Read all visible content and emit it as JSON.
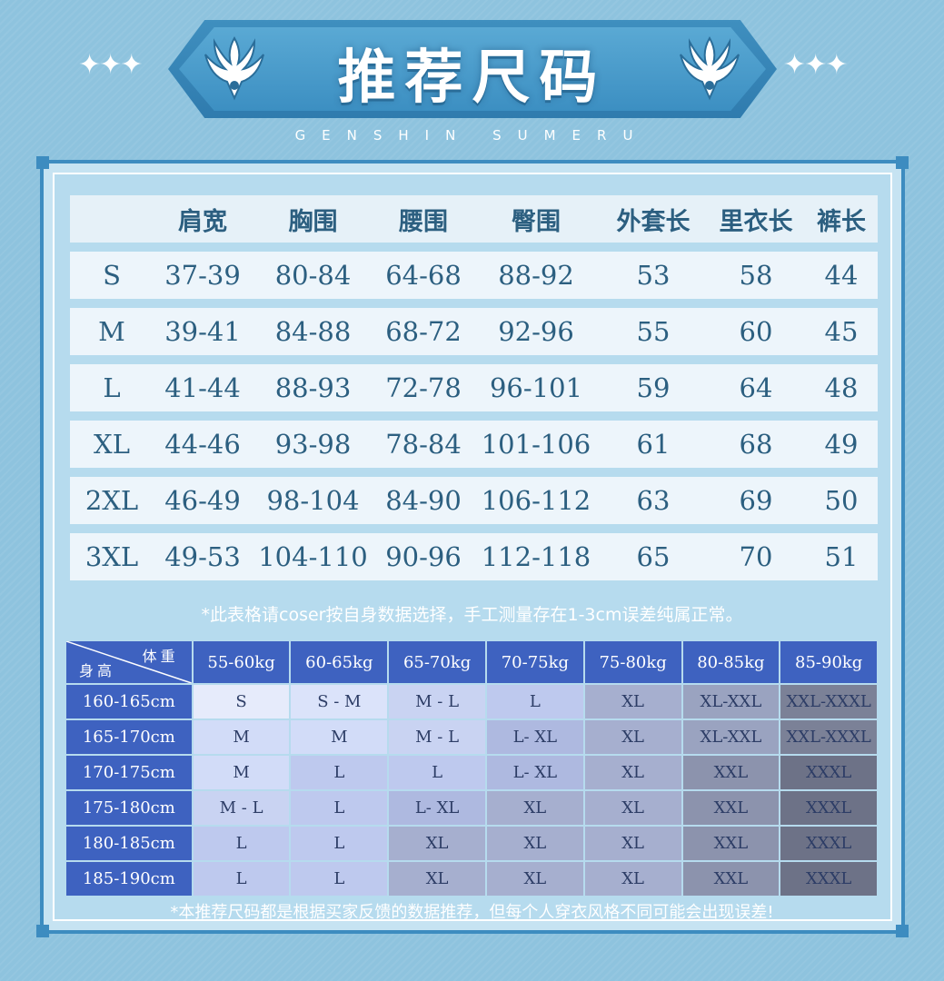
{
  "header": {
    "title": "推荐尺码",
    "subtitle": "GENSHIN SUMERU",
    "stars_left": "✦✦✦",
    "stars_right": "✦✦✦",
    "emblem_icon": "wing-emblem-icon"
  },
  "size_table": {
    "columns": [
      "",
      "肩宽",
      "胸围",
      "腰围",
      "臀围",
      "外套长",
      "里衣长",
      "裤长"
    ],
    "rows": [
      [
        "S",
        "37-39",
        "80-84",
        "64-68",
        "88-92",
        "53",
        "58",
        "44"
      ],
      [
        "M",
        "39-41",
        "84-88",
        "68-72",
        "92-96",
        "55",
        "60",
        "45"
      ],
      [
        "L",
        "41-44",
        "88-93",
        "72-78",
        "96-101",
        "59",
        "64",
        "48"
      ],
      [
        "XL",
        "44-46",
        "93-98",
        "78-84",
        "101-106",
        "61",
        "68",
        "49"
      ],
      [
        "2XL",
        "46-49",
        "98-104",
        "84-90",
        "106-112",
        "63",
        "69",
        "50"
      ],
      [
        "3XL",
        "49-53",
        "104-110",
        "90-96",
        "112-118",
        "65",
        "70",
        "51"
      ]
    ]
  },
  "note_top": "*此表格请coser按自身数据选择，手工测量存在1-3cm误差纯属正常。",
  "grid": {
    "corner_weight": "体重",
    "corner_height": "身高",
    "weights": [
      "55-60kg",
      "60-65kg",
      "65-70kg",
      "70-75kg",
      "75-80kg",
      "80-85kg",
      "85-90kg"
    ],
    "rows": [
      {
        "height": "160-165cm",
        "sizes": [
          "S",
          "S - M",
          "M - L",
          "L",
          "XL",
          "XL-XXL",
          "XXL-XXXL"
        ]
      },
      {
        "height": "165-170cm",
        "sizes": [
          "M",
          "M",
          "M - L",
          "L- XL",
          "XL",
          "XL-XXL",
          "XXL-XXXL"
        ]
      },
      {
        "height": "170-175cm",
        "sizes": [
          "M",
          "L",
          "L",
          "L- XL",
          "XL",
          "XXL",
          "XXXL"
        ]
      },
      {
        "height": "175-180cm",
        "sizes": [
          "M - L",
          "L",
          "L- XL",
          "XL",
          "XL",
          "XXL",
          "XXXL"
        ]
      },
      {
        "height": "180-185cm",
        "sizes": [
          "L",
          "L",
          "XL",
          "XL",
          "XL",
          "XXL",
          "XXXL"
        ]
      },
      {
        "height": "185-190cm",
        "sizes": [
          "L",
          "L",
          "XL",
          "XL",
          "XL",
          "XXL",
          "XXXL"
        ]
      }
    ],
    "size_colors": {
      "S": "#e6ebfb",
      "S - M": "#dbe3fa",
      "M": "#d2dcf8",
      "M - L": "#c9d3f2",
      "L": "#bec9ee",
      "L- XL": "#aeb9e0",
      "XL": "#a6afcf",
      "XL-XXL": "#9aa3c0",
      "XXL": "#8c93ad",
      "XXL-XXXL": "#7b8197",
      "XXXL": "#6d7287"
    }
  },
  "note_bottom": "*本推荐尺码都是根据买家反馈的数据推荐，但每个人穿衣风格不同可能会出现误差!",
  "colors": {
    "background": "#8ec3de",
    "frame": "#3d8cc0",
    "table_row": "#edf5fb",
    "table_text": "#2c5f80",
    "grid_header": "#3e62c0"
  }
}
